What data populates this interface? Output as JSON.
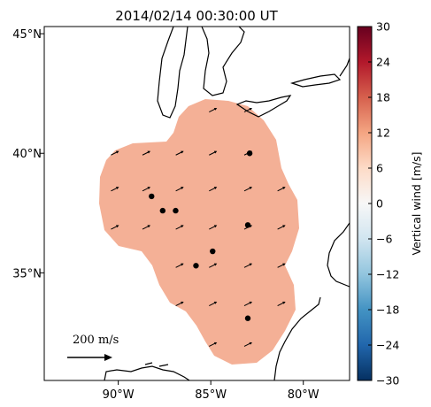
{
  "chart_data": {
    "type": "heatmap",
    "title": "2014/02/14 00:30:00 UT",
    "projection": "map",
    "x_axis": {
      "ticks": [
        {
          "lon": -90,
          "label": "90°W"
        },
        {
          "lon": -85,
          "label": "85°W"
        },
        {
          "lon": -80,
          "label": "80°W"
        }
      ],
      "range": [
        -94,
        -77.5
      ]
    },
    "y_axis": {
      "ticks": [
        {
          "lat": 45,
          "label": "45°N"
        },
        {
          "lat": 40,
          "label": "40°N"
        },
        {
          "lat": 35,
          "label": "35°N"
        }
      ],
      "range": [
        30.5,
        45.3
      ]
    },
    "field": {
      "name": "Vertical wind",
      "value": 8,
      "unit": "m/s",
      "fill_color": "#f4b096"
    },
    "colorbar": {
      "label": "Vertical wind [m/s]",
      "range": [
        -30,
        30
      ],
      "ticks": [
        "30",
        "24",
        "18",
        "12",
        "6",
        "0",
        "−6",
        "−12",
        "−18",
        "−24",
        "−30"
      ],
      "tick_values": [
        30,
        24,
        18,
        12,
        6,
        0,
        -6,
        -12,
        -18,
        -24,
        -30
      ],
      "colormap": "RdBu_r"
    },
    "stations": [
      {
        "lon": -82.9,
        "lat": 40.0
      },
      {
        "lon": -88.2,
        "lat": 38.2
      },
      {
        "lon": -87.6,
        "lat": 37.6
      },
      {
        "lon": -86.9,
        "lat": 37.6
      },
      {
        "lon": -83.0,
        "lat": 37.0
      },
      {
        "lon": -84.9,
        "lat": 35.9
      },
      {
        "lon": -85.8,
        "lat": 35.3
      },
      {
        "lon": -83.0,
        "lat": 33.1
      }
    ],
    "vector_reference": {
      "label": "200 m/s",
      "value": 200
    },
    "wind_vectors": {
      "direction": "east-northeast",
      "grid_lon": [
        -90.2,
        -88.5,
        -86.7,
        -84.9,
        -83.0,
        -81.2
      ],
      "grid_lat": [
        41.8,
        40.0,
        38.5,
        36.9,
        35.3,
        33.7,
        32.0
      ]
    }
  }
}
